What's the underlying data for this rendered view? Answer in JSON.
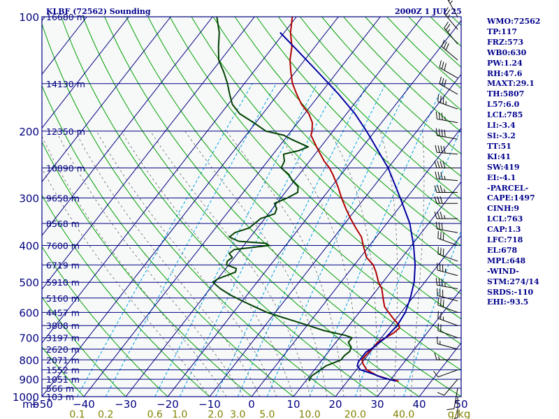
{
  "chart_data": {
    "type": "line",
    "title": "KLBF (72562) Sounding",
    "valid_time": "2000Z  1 JUL 25",
    "axes": {
      "pressure_label": "mb",
      "pressure_ticks": [
        100,
        200,
        300,
        400,
        500,
        600,
        700,
        800,
        900,
        1000
      ],
      "temperature_ticks": [
        -50,
        -40,
        -30,
        -20,
        -10,
        0,
        10,
        20,
        30,
        40,
        50
      ],
      "temperature_range": [
        -50,
        50
      ],
      "pressure_range": [
        1000,
        100
      ],
      "pressure_scale": "log",
      "mixing_ratio_label": "g/kg",
      "mixing_ratio_ticks": [
        {
          "label": "0.1",
          "value": 0.1
        },
        {
          "label": "0.2",
          "value": 0.2
        },
        {
          "label": "0.6",
          "value": 0.6
        },
        {
          "label": "1.0",
          "value": 1.0
        },
        {
          "label": "2.0",
          "value": 2.0
        },
        {
          "label": "3.0",
          "value": 3.0
        },
        {
          "label": "5.0",
          "value": 5.0
        },
        {
          "label": "10.0",
          "value": 10.0
        },
        {
          "label": "20.0",
          "value": 20.0
        },
        {
          "label": "40.0",
          "value": 40.0
        }
      ]
    },
    "height_labels": [
      {
        "p": 100,
        "label": "16680 m"
      },
      {
        "p": 150,
        "label": "14130 m"
      },
      {
        "p": 200,
        "label": "12350 m"
      },
      {
        "p": 250,
        "label": "10890 m"
      },
      {
        "p": 300,
        "label": "9658 m"
      },
      {
        "p": 350,
        "label": "8568 m"
      },
      {
        "p": 400,
        "label": "7600 m"
      },
      {
        "p": 450,
        "label": "6719 m"
      },
      {
        "p": 500,
        "label": "5910 m"
      },
      {
        "p": 550,
        "label": "5160 m"
      },
      {
        "p": 600,
        "label": "4457 m"
      },
      {
        "p": 650,
        "label": "3808 m"
      },
      {
        "p": 700,
        "label": "3197 m"
      },
      {
        "p": 750,
        "label": "2620 m"
      },
      {
        "p": 800,
        "label": "2071 m"
      },
      {
        "p": 850,
        "label": "1552 m"
      },
      {
        "p": 900,
        "label": "1051 m"
      },
      {
        "p": 950,
        "label": "566 m"
      },
      {
        "p": 1000,
        "label": "103 m"
      }
    ],
    "series": [
      {
        "key": "temperature",
        "color": "#b00000",
        "points": [
          [
            910,
            32.2
          ],
          [
            900,
            29.5
          ],
          [
            880,
            26.0
          ],
          [
            850,
            22.5
          ],
          [
            820,
            20.5
          ],
          [
            800,
            19.5
          ],
          [
            780,
            19.5
          ],
          [
            750,
            19.8
          ],
          [
            720,
            20.0
          ],
          [
            700,
            21.0
          ],
          [
            680,
            22.0
          ],
          [
            660,
            22.5
          ],
          [
            650,
            22.0
          ],
          [
            620,
            19.0
          ],
          [
            600,
            17.0
          ],
          [
            580,
            15.0
          ],
          [
            550,
            13.0
          ],
          [
            520,
            11.0
          ],
          [
            500,
            9.0
          ],
          [
            470,
            6.5
          ],
          [
            450,
            4.5
          ],
          [
            430,
            1.5
          ],
          [
            400,
            -1.5
          ],
          [
            380,
            -3.5
          ],
          [
            360,
            -6.5
          ],
          [
            340,
            -9.5
          ],
          [
            320,
            -12.5
          ],
          [
            300,
            -15.5
          ],
          [
            280,
            -18.5
          ],
          [
            260,
            -22.0
          ],
          [
            250,
            -24.0
          ],
          [
            240,
            -26.5
          ],
          [
            220,
            -31.0
          ],
          [
            205,
            -34.5
          ],
          [
            200,
            -35.0
          ],
          [
            190,
            -36.5
          ],
          [
            180,
            -39.0
          ],
          [
            170,
            -42.5
          ],
          [
            160,
            -45.5
          ],
          [
            150,
            -48.5
          ],
          [
            140,
            -51.0
          ],
          [
            130,
            -53.5
          ],
          [
            120,
            -55.5
          ],
          [
            110,
            -58.5
          ],
          [
            100,
            -61.0
          ]
        ]
      },
      {
        "key": "dewpoint",
        "color": "#004000",
        "points": [
          [
            910,
            11.0
          ],
          [
            900,
            10.5
          ],
          [
            880,
            10.5
          ],
          [
            850,
            11.5
          ],
          [
            830,
            12.0
          ],
          [
            800,
            14.5
          ],
          [
            780,
            14.5
          ],
          [
            760,
            15.0
          ],
          [
            740,
            14.5
          ],
          [
            720,
            13.0
          ],
          [
            700,
            13.0
          ],
          [
            690,
            11.0
          ],
          [
            670,
            5.0
          ],
          [
            640,
            -2.0
          ],
          [
            620,
            -7.0
          ],
          [
            600,
            -12.0
          ],
          [
            580,
            -16.0
          ],
          [
            560,
            -20.0
          ],
          [
            540,
            -24.0
          ],
          [
            520,
            -27.5
          ],
          [
            510,
            -29.0
          ],
          [
            500,
            -30.5
          ],
          [
            490,
            -30.0
          ],
          [
            470,
            -27.0
          ],
          [
            460,
            -27.5
          ],
          [
            450,
            -30.5
          ],
          [
            440,
            -31.0
          ],
          [
            430,
            -30.5
          ],
          [
            420,
            -32.0
          ],
          [
            410,
            -31.5
          ],
          [
            400,
            -24.0
          ],
          [
            395,
            -25.0
          ],
          [
            390,
            -32.0
          ],
          [
            380,
            -35.0
          ],
          [
            370,
            -34.5
          ],
          [
            360,
            -32.0
          ],
          [
            350,
            -31.5
          ],
          [
            340,
            -31.0
          ],
          [
            330,
            -28.5
          ],
          [
            320,
            -29.0
          ],
          [
            310,
            -30.5
          ],
          [
            300,
            -28.5
          ],
          [
            290,
            -27.0
          ],
          [
            280,
            -28.0
          ],
          [
            270,
            -30.5
          ],
          [
            260,
            -32.5
          ],
          [
            250,
            -35.5
          ],
          [
            240,
            -36.0
          ],
          [
            230,
            -37.5
          ],
          [
            225,
            -34.5
          ],
          [
            220,
            -33.0
          ],
          [
            210,
            -38.5
          ],
          [
            205,
            -41.0
          ],
          [
            200,
            -46.0
          ],
          [
            190,
            -50.5
          ],
          [
            180,
            -55.5
          ],
          [
            170,
            -59.0
          ],
          [
            160,
            -61.5
          ],
          [
            150,
            -64.0
          ],
          [
            140,
            -67.0
          ],
          [
            130,
            -70.5
          ],
          [
            120,
            -73.0
          ],
          [
            110,
            -75.5
          ],
          [
            100,
            -79.0
          ]
        ]
      },
      {
        "key": "parcel",
        "color": "#0000a0",
        "points": [
          [
            910,
            31.5
          ],
          [
            890,
            27.5
          ],
          [
            870,
            24.5
          ],
          [
            850,
            21.0
          ],
          [
            830,
            19.5
          ],
          [
            810,
            19.0
          ],
          [
            790,
            19.0
          ],
          [
            763,
            19.0
          ],
          [
            740,
            20.0
          ],
          [
            718,
            20.5
          ],
          [
            700,
            21.0
          ],
          [
            650,
            21.5
          ],
          [
            600,
            21.0
          ],
          [
            550,
            19.5
          ],
          [
            500,
            17.5
          ],
          [
            450,
            14.5
          ],
          [
            400,
            10.5
          ],
          [
            350,
            5.5
          ],
          [
            300,
            -1.5
          ],
          [
            250,
            -10.0
          ],
          [
            200,
            -22.0
          ],
          [
            180,
            -28.0
          ],
          [
            160,
            -35.5
          ],
          [
            140,
            -44.5
          ],
          [
            120,
            -55.0
          ],
          [
            110,
            -61.0
          ]
        ]
      }
    ]
  },
  "indices": [
    "WMO:72562",
    "TP:117",
    "FRZ:573",
    "WB0:630",
    "PW:1.24",
    "RH:47.6",
    "MAXT:29.1",
    "TH:5807",
    "L57:6.0",
    "LCL:785",
    "LI:-3.4",
    "SI:-3.2",
    "TT:51",
    "KI:41",
    "SW:419",
    "EI:-4.1",
    "-PARCEL-",
    "CAPE:1497",
    "CINH:9",
    "LCL:763",
    "CAP:1.3",
    "LFC:718",
    "EL:678",
    "MPL:648",
    "-WIND-",
    "STM:274/14",
    "SRDS:-110",
    "EHI:-93.5"
  ],
  "wind_profile": [
    {
      "p": 1000,
      "dir": 180,
      "spd": 5
    },
    {
      "p": 950,
      "dir": 190,
      "spd": 10
    },
    {
      "p": 900,
      "dir": 220,
      "spd": 10
    },
    {
      "p": 850,
      "dir": 250,
      "spd": 10
    },
    {
      "p": 800,
      "dir": 270,
      "spd": 15
    },
    {
      "p": 750,
      "dir": 285,
      "spd": 15
    },
    {
      "p": 700,
      "dir": 290,
      "spd": 20
    },
    {
      "p": 650,
      "dir": 290,
      "spd": 25
    },
    {
      "p": 600,
      "dir": 290,
      "spd": 30
    },
    {
      "p": 560,
      "dir": 285,
      "spd": 30
    },
    {
      "p": 520,
      "dir": 280,
      "spd": 35
    },
    {
      "p": 480,
      "dir": 285,
      "spd": 35
    },
    {
      "p": 440,
      "dir": 290,
      "spd": 30
    },
    {
      "p": 400,
      "dir": 290,
      "spd": 30
    },
    {
      "p": 370,
      "dir": 280,
      "spd": 30
    },
    {
      "p": 340,
      "dir": 270,
      "spd": 35
    },
    {
      "p": 310,
      "dir": 270,
      "spd": 30
    },
    {
      "p": 290,
      "dir": 270,
      "spd": 35
    },
    {
      "p": 270,
      "dir": 275,
      "spd": 35
    },
    {
      "p": 250,
      "dir": 270,
      "spd": 40
    },
    {
      "p": 230,
      "dir": 275,
      "spd": 40
    },
    {
      "p": 210,
      "dir": 280,
      "spd": 40
    },
    {
      "p": 190,
      "dir": 280,
      "spd": 35
    },
    {
      "p": 175,
      "dir": 290,
      "spd": 35
    },
    {
      "p": 160,
      "dir": 300,
      "spd": 30
    },
    {
      "p": 145,
      "dir": 300,
      "spd": 30
    },
    {
      "p": 130,
      "dir": 310,
      "spd": 30
    },
    {
      "p": 118,
      "dir": 320,
      "spd": 25
    },
    {
      "p": 108,
      "dir": 320,
      "spd": 25
    },
    {
      "p": 100,
      "dir": 330,
      "spd": 25
    }
  ],
  "colors": {
    "frame": "#000080",
    "isobar": "#000080",
    "isotherm": "#000080",
    "dry_adiabat": "#00a000",
    "moist_adiabat": "#606060",
    "mixing_ratio": "#00a0e0",
    "temperature": "#b00000",
    "dewpoint": "#004000",
    "parcel": "#0000a0",
    "pressure_labels": "#000080",
    "temp_labels": "#000080",
    "mixing_ratio_labels": "#808000",
    "wind_barbs": "#000000"
  }
}
